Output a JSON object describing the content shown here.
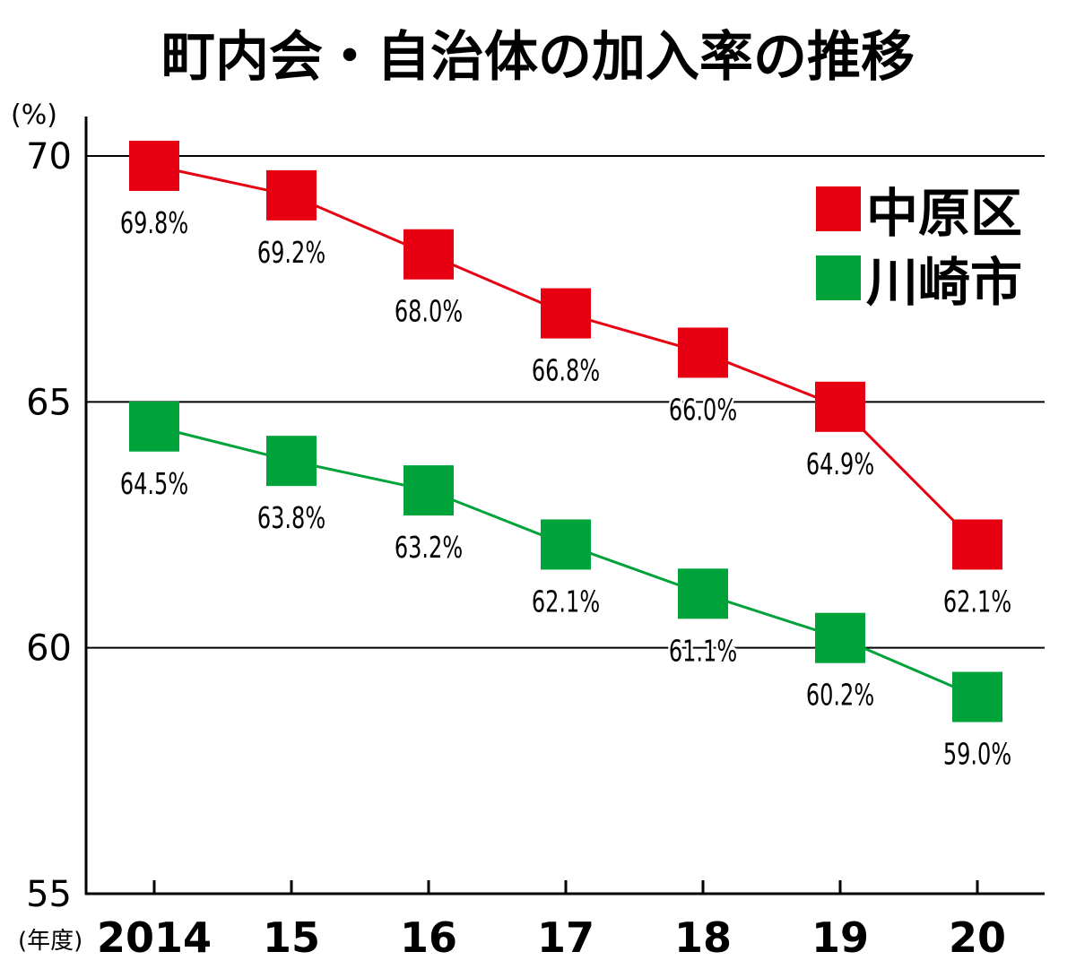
{
  "chart_data": {
    "type": "line",
    "title": "町内会・自治体の加入率の推移",
    "ylabel": "(%)",
    "xlabel": "(年度)",
    "x": [
      "2014",
      "15",
      "16",
      "17",
      "18",
      "19",
      "20"
    ],
    "ylim": [
      55,
      70
    ],
    "yticks": [
      "55",
      "60",
      "65",
      "70"
    ],
    "grid": true,
    "legend_position": "top-right",
    "series": [
      {
        "name": "中原区",
        "color": "#e60012",
        "values": [
          69.8,
          69.2,
          68.0,
          66.8,
          66.0,
          64.9,
          62.1
        ],
        "labels": [
          "69.8%",
          "69.2%",
          "68.0%",
          "66.8%",
          "66.0%",
          "64.9%",
          "62.1%"
        ]
      },
      {
        "name": "川崎市",
        "color": "#00a23a",
        "values": [
          64.5,
          63.8,
          63.2,
          62.1,
          61.1,
          60.2,
          59.0
        ],
        "labels": [
          "64.5%",
          "63.8%",
          "63.2%",
          "62.1%",
          "61.1%",
          "60.2%",
          "59.0%"
        ]
      }
    ]
  }
}
